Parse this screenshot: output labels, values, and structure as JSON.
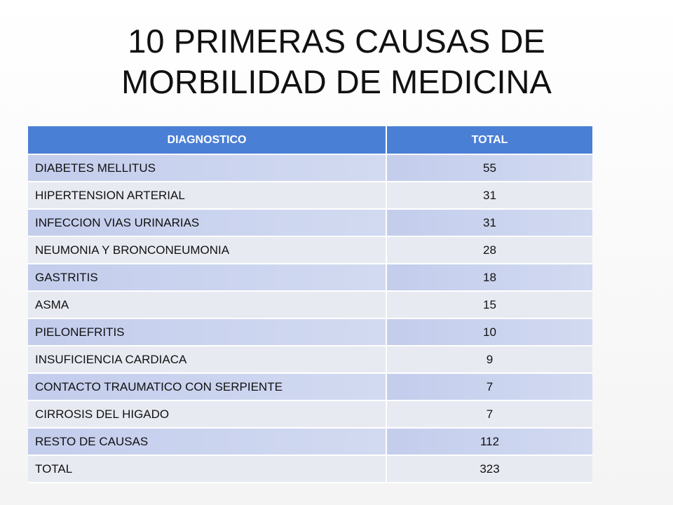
{
  "header": {
    "title": "10 PRIMERAS CAUSAS DE MORBILIDAD DE MEDICINA"
  },
  "table": {
    "columns": [
      "DIAGNOSTICO",
      "TOTAL"
    ],
    "rows": [
      [
        "DIABETES MELLITUS",
        55
      ],
      [
        "HIPERTENSION ARTERIAL",
        31
      ],
      [
        "INFECCION VIAS URINARIAS",
        31
      ],
      [
        "NEUMONIA Y BRONCONEUMONIA",
        28
      ],
      [
        "GASTRITIS",
        18
      ],
      [
        "ASMA",
        15
      ],
      [
        "PIELONEFRITIS",
        10
      ],
      [
        "INSUFICIENCIA CARDIACA",
        9
      ],
      [
        "CONTACTO TRAUMATICO CON SERPIENTE",
        7
      ],
      [
        "CIRROSIS DEL HIGADO",
        7
      ],
      [
        "RESTO DE CAUSAS",
        112
      ],
      [
        "TOTAL",
        323
      ]
    ]
  }
}
